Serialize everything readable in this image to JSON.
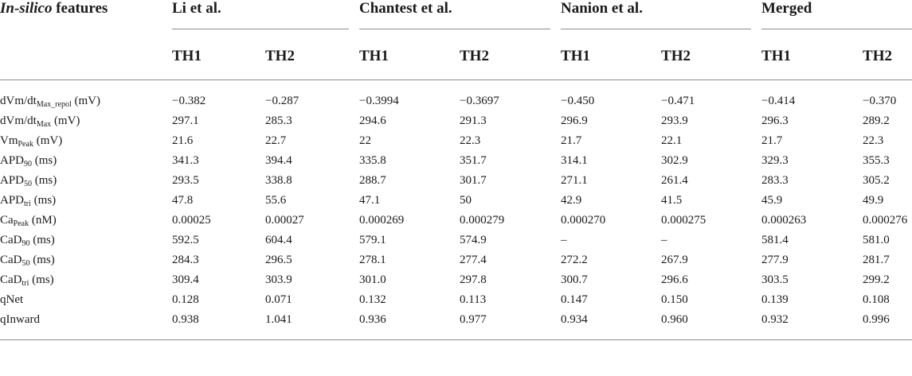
{
  "header": {
    "feature_label_italic": "In-silico",
    "feature_label_rest": " features",
    "groups": [
      "Li et al.",
      "Chantest et al.",
      "Nanion et al.",
      "Merged"
    ],
    "sub_columns": [
      "TH1",
      "TH2",
      "TH1",
      "TH2",
      "TH1",
      "TH2",
      "TH1",
      "TH2"
    ]
  },
  "rows": [
    {
      "base": "dVm/dt",
      "sub": "Max_repol",
      "unit": " (mV)",
      "values": [
        "−0.382",
        "−0.287",
        "−0.3994",
        "−0.3697",
        "−0.450",
        "−0.471",
        "−0.414",
        "−0.370"
      ]
    },
    {
      "base": "dVm/dt",
      "sub": "Max",
      "unit": " (mV)",
      "values": [
        "297.1",
        "285.3",
        "294.6",
        "291.3",
        "296.9",
        "293.9",
        "296.3",
        "289.2"
      ]
    },
    {
      "base": "Vm",
      "sub": "Peak",
      "unit": " (mV)",
      "values": [
        "21.6",
        "22.7",
        "22",
        "22.3",
        "21.7",
        "22.1",
        "21.7",
        "22.3"
      ]
    },
    {
      "base": "APD",
      "sub": "90",
      "unit": " (ms)",
      "values": [
        "341.3",
        "394.4",
        "335.8",
        "351.7",
        "314.1",
        "302.9",
        "329.3",
        "355.3"
      ]
    },
    {
      "base": "APD",
      "sub": "50",
      "unit": " (ms)",
      "values": [
        "293.5",
        "338.8",
        "288.7",
        "301.7",
        "271.1",
        "261.4",
        "283.3",
        "305.2"
      ]
    },
    {
      "base": "APD",
      "sub": "tri",
      "unit": " (ms)",
      "values": [
        "47.8",
        "55.6",
        "47.1",
        "50",
        "42.9",
        "41.5",
        "45.9",
        "49.9"
      ]
    },
    {
      "base": "Ca",
      "sub": "Peak",
      "unit": " (nM)",
      "values": [
        "0.00025",
        "0.00027",
        "0.000269",
        "0.000279",
        "0.000270",
        "0.000275",
        "0.000263",
        "0.000276"
      ]
    },
    {
      "base": "CaD",
      "sub": "90",
      "unit": " (ms)",
      "values": [
        "592.5",
        "604.4",
        "579.1",
        "574.9",
        "–",
        "–",
        "581.4",
        "581.0"
      ]
    },
    {
      "base": "CaD",
      "sub": "50",
      "unit": " (ms)",
      "values": [
        "284.3",
        "296.5",
        "278.1",
        "277.4",
        "272.2",
        "267.9",
        "277.9",
        "281.7"
      ]
    },
    {
      "base": "CaD",
      "sub": "tri",
      "unit": " (ms)",
      "values": [
        "309.4",
        "303.9",
        "301.0",
        "297.8",
        "300.7",
        "296.6",
        "303.5",
        "299.2"
      ]
    },
    {
      "base": "qNet",
      "sub": "",
      "unit": "",
      "values": [
        "0.128",
        "0.071",
        "0.132",
        "0.113",
        "0.147",
        "0.150",
        "0.139",
        "0.108"
      ]
    },
    {
      "base": "qInward",
      "sub": "",
      "unit": "",
      "values": [
        "0.938",
        "1.041",
        "0.936",
        "0.977",
        "0.934",
        "0.960",
        "0.932",
        "0.996"
      ]
    }
  ]
}
